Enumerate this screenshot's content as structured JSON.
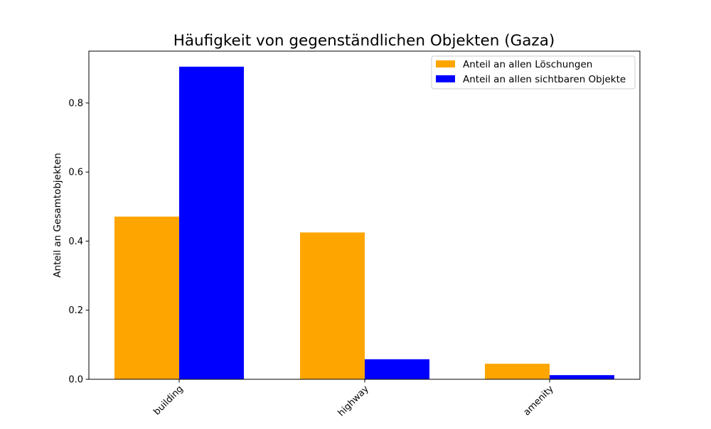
{
  "chart_data": {
    "type": "bar",
    "title": "Häufigkeit von gegenständlichen Objekten (Gaza)",
    "xlabel": "",
    "ylabel": "Anteil an Gesamtobjekten",
    "categories": [
      "building",
      "highway",
      "amenity"
    ],
    "series": [
      {
        "name": "Anteil an allen Löschungen",
        "color": "#ffa500",
        "values": [
          0.471,
          0.425,
          0.045
        ]
      },
      {
        "name": "Anteil an allen sichtbaren Objekte",
        "color": "#0000ff",
        "values": [
          0.905,
          0.058,
          0.012
        ]
      }
    ],
    "ylim": [
      0,
      0.95
    ],
    "yticks": [
      0.0,
      0.2,
      0.4,
      0.6,
      0.8
    ],
    "ytick_labels": [
      "0.0",
      "0.2",
      "0.4",
      "0.6",
      "0.8"
    ],
    "grid": false,
    "legend_position": "top-right"
  }
}
